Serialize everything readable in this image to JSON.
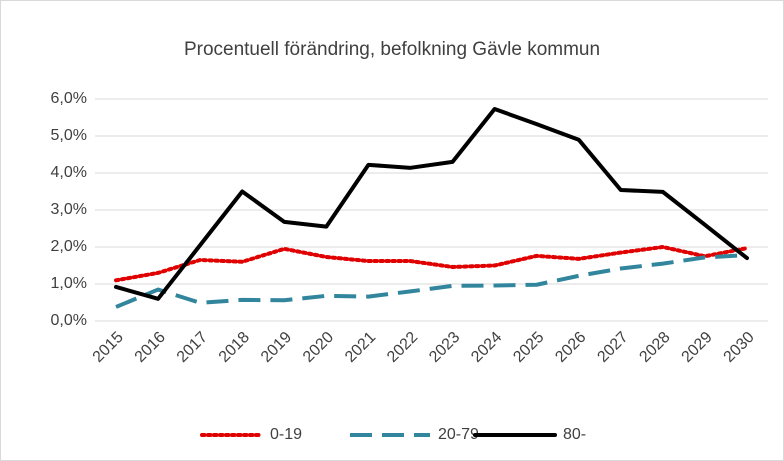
{
  "chart_data": {
    "type": "line",
    "title": "Procentuell förändring, befolkning Gävle kommun",
    "categories": [
      "2015",
      "2016",
      "2017",
      "2018",
      "2019",
      "2020",
      "2021",
      "2022",
      "2023",
      "2024",
      "2025",
      "2026",
      "2027",
      "2028",
      "2029",
      "2030"
    ],
    "series": [
      {
        "name": "0-19",
        "color": "#e00000",
        "dash": "dotted",
        "values": [
          1.1,
          1.3,
          1.65,
          1.6,
          1.95,
          1.73,
          1.62,
          1.62,
          1.46,
          1.5,
          1.76,
          1.68,
          1.85,
          2.0,
          1.75,
          1.97
        ]
      },
      {
        "name": "20-79",
        "color": "#31859c",
        "dash": "dashed",
        "values": [
          0.38,
          0.85,
          0.49,
          0.57,
          0.56,
          0.68,
          0.66,
          0.8,
          0.95,
          0.96,
          0.98,
          1.22,
          1.42,
          1.55,
          1.72,
          1.78
        ]
      },
      {
        "name": "80-",
        "color": "#000000",
        "dash": "solid",
        "values": [
          0.92,
          0.6,
          2.05,
          3.5,
          2.68,
          2.55,
          4.22,
          4.14,
          4.3,
          5.73,
          5.32,
          4.9,
          3.54,
          3.49,
          2.6,
          1.7
        ]
      }
    ],
    "ylim": [
      0,
      6
    ],
    "yticks": [
      {
        "value": 0,
        "label": "0,0%"
      },
      {
        "value": 1,
        "label": "1,0%"
      },
      {
        "value": 2,
        "label": "2,0%"
      },
      {
        "value": 3,
        "label": "3,0%"
      },
      {
        "value": 4,
        "label": "4,0%"
      },
      {
        "value": 5,
        "label": "5,0%"
      },
      {
        "value": 6,
        "label": "6,0%"
      }
    ],
    "grid": true,
    "legend": "bottom"
  }
}
